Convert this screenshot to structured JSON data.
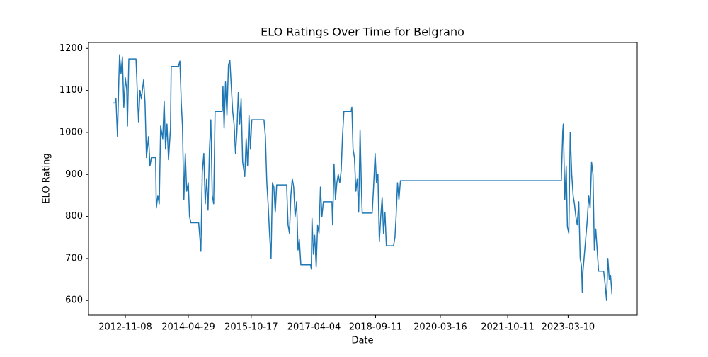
{
  "chart_data": {
    "type": "line",
    "title": "ELO Ratings Over Time for Belgrano",
    "xlabel": "Date",
    "ylabel": "ELO Rating",
    "color": "#1f77b4",
    "x": [
      "2012-07-26",
      "2012-08-14",
      "2012-08-20",
      "2012-09-02",
      "2012-09-14",
      "2012-09-20",
      "2012-10-02",
      "2012-10-14",
      "2012-10-26",
      "2012-11-08",
      "2012-11-20",
      "2012-11-26",
      "2012-12-08",
      "2013-02-07",
      "2013-02-19",
      "2013-03-01",
      "2013-03-13",
      "2013-03-25",
      "2013-04-13",
      "2013-04-25",
      "2013-05-07",
      "2013-05-25",
      "2013-06-06",
      "2013-06-18",
      "2013-07-24",
      "2013-07-30",
      "2013-08-12",
      "2013-08-24",
      "2013-09-05",
      "2013-09-23",
      "2013-10-05",
      "2013-10-17",
      "2013-10-29",
      "2013-11-11",
      "2013-11-28",
      "2013-12-04",
      "2014-02-04",
      "2014-02-16",
      "2014-02-28",
      "2014-03-10",
      "2014-03-22",
      "2014-04-03",
      "2014-04-15",
      "2014-04-29",
      "2014-05-09",
      "2014-05-21",
      "2014-07-26",
      "2014-08-08",
      "2014-08-14",
      "2014-08-26",
      "2014-09-08",
      "2014-09-20",
      "2014-10-02",
      "2014-10-14",
      "2014-10-26",
      "2014-11-07",
      "2014-11-19",
      "2014-12-01",
      "2014-12-13",
      "2015-02-12",
      "2015-02-18",
      "2015-02-28",
      "2015-03-12",
      "2015-03-24",
      "2015-04-06",
      "2015-04-18",
      "2015-04-30",
      "2015-05-12",
      "2015-05-24",
      "2015-06-05",
      "2015-06-17",
      "2015-06-29",
      "2015-07-11",
      "2015-07-23",
      "2015-08-05",
      "2015-08-23",
      "2015-09-04",
      "2015-09-16",
      "2015-09-28",
      "2015-10-10",
      "2015-10-22",
      "2016-02-03",
      "2016-02-15",
      "2016-02-27",
      "2016-03-09",
      "2016-03-21",
      "2016-04-03",
      "2016-04-15",
      "2016-04-27",
      "2016-05-09",
      "2016-05-21",
      "2016-08-14",
      "2016-08-26",
      "2016-09-07",
      "2016-09-19",
      "2016-10-01",
      "2016-10-13",
      "2016-10-25",
      "2016-11-07",
      "2016-11-19",
      "2016-11-30",
      "2016-12-13",
      "2017-03-06",
      "2017-03-12",
      "2017-03-18",
      "2017-03-30",
      "2017-04-10",
      "2017-04-23",
      "2017-05-05",
      "2017-05-17",
      "2017-05-29",
      "2017-06-11",
      "2017-06-23",
      "2017-09-04",
      "2017-09-10",
      "2017-09-22",
      "2017-10-04",
      "2017-10-16",
      "2017-10-28",
      "2017-11-10",
      "2017-11-22",
      "2017-12-03",
      "2017-12-15",
      "2018-02-14",
      "2018-02-21",
      "2018-03-03",
      "2018-03-15",
      "2018-03-27",
      "2018-04-08",
      "2018-04-20",
      "2018-05-02",
      "2018-05-14",
      "2018-05-20",
      "2018-08-13",
      "2018-08-25",
      "2018-09-07",
      "2018-09-19",
      "2018-10-01",
      "2018-10-13",
      "2018-10-25",
      "2018-11-06",
      "2018-11-18",
      "2018-11-30",
      "2018-12-12",
      "2019-02-11",
      "2019-02-23",
      "2019-03-05",
      "2019-03-17",
      "2019-03-29",
      "2019-04-11",
      "2023-01-11",
      "2023-01-23",
      "2023-01-28",
      "2023-02-10",
      "2023-02-22",
      "2023-03-04",
      "2023-03-16",
      "2023-03-28",
      "2023-04-10",
      "2023-04-22",
      "2023-05-03",
      "2023-05-15",
      "2023-05-27",
      "2023-06-09",
      "2023-06-21",
      "2023-07-03",
      "2023-07-09",
      "2023-07-15",
      "2023-08-20",
      "2023-09-02",
      "2023-09-14",
      "2023-09-26",
      "2023-10-08",
      "2023-10-20",
      "2023-11-01",
      "2023-11-13",
      "2023-11-25",
      "2024-01-07",
      "2024-01-19",
      "2024-02-01",
      "2024-02-12",
      "2024-02-24",
      "2024-03-06",
      "2024-03-18"
    ],
    "values": [
      1070,
      1070,
      1080,
      990,
      1130,
      1185,
      1140,
      1180,
      1060,
      1130,
      1100,
      1015,
      1175,
      1175,
      1090,
      1025,
      1100,
      1080,
      1125,
      1070,
      940,
      990,
      920,
      940,
      940,
      820,
      850,
      830,
      1015,
      985,
      1075,
      960,
      1020,
      935,
      1010,
      1157,
      1157,
      1170,
      1070,
      1015,
      840,
      950,
      860,
      880,
      800,
      785,
      785,
      740,
      717,
      905,
      950,
      830,
      890,
      815,
      960,
      1030,
      850,
      830,
      1050,
      1050,
      1110,
      1010,
      1120,
      1040,
      1160,
      1172,
      1110,
      1050,
      1020,
      950,
      1000,
      1095,
      1020,
      1080,
      930,
      895,
      985,
      920,
      1040,
      960,
      1030,
      1030,
      990,
      880,
      830,
      760,
      700,
      880,
      870,
      810,
      875,
      875,
      780,
      760,
      850,
      890,
      870,
      800,
      835,
      720,
      745,
      685,
      685,
      675,
      795,
      710,
      755,
      680,
      780,
      760,
      870,
      800,
      835,
      835,
      780,
      925,
      840,
      880,
      900,
      880,
      910,
      990,
      1050,
      1050,
      1060,
      960,
      940,
      860,
      890,
      810,
      1005,
      860,
      808,
      808,
      870,
      950,
      880,
      900,
      740,
      800,
      845,
      760,
      810,
      730,
      730,
      750,
      800,
      880,
      840,
      885,
      885,
      1000,
      1020,
      840,
      920,
      775,
      760,
      1000,
      900,
      850,
      830,
      800,
      780,
      835,
      700,
      680,
      620,
      670,
      790,
      850,
      820,
      930,
      900,
      720,
      770,
      720,
      670,
      670,
      640,
      600,
      700,
      650,
      660,
      615
    ],
    "xlim": [
      "2011-12-30",
      "2024-10-19"
    ],
    "xticks": [
      "2012-11-08",
      "2014-04-29",
      "2015-10-17",
      "2017-04-04",
      "2018-09-11",
      "2020-03-16",
      "2021-10-11",
      "2023-03-10"
    ],
    "ylim": [
      565,
      1214
    ],
    "yticks": [
      600,
      700,
      800,
      900,
      1000,
      1100,
      1200
    ]
  }
}
